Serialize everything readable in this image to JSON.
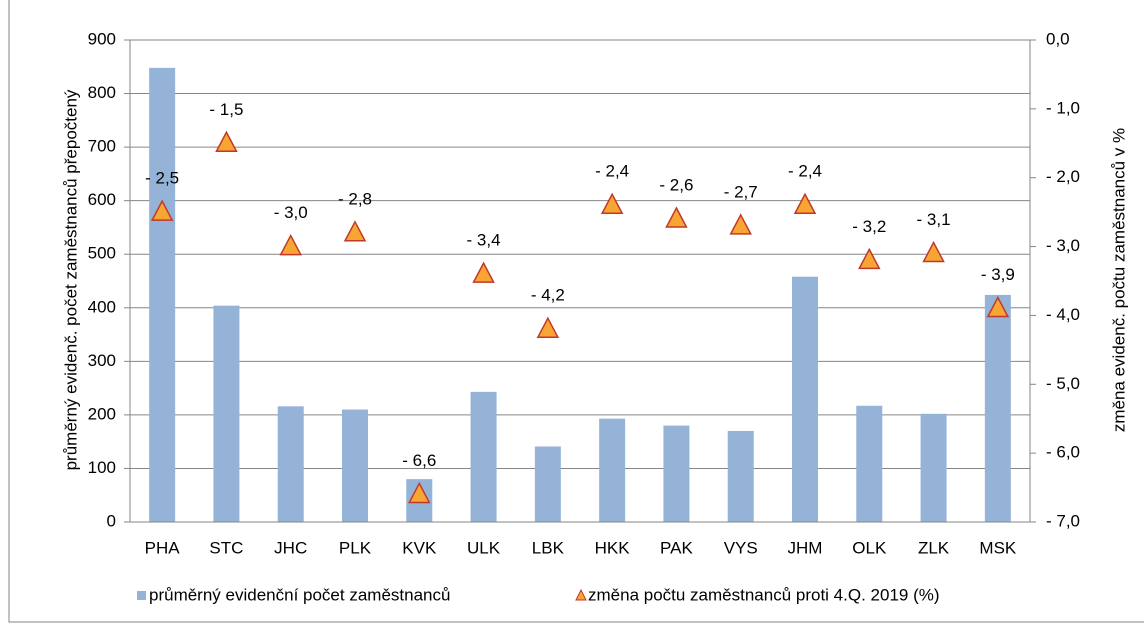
{
  "chart_data": {
    "type": "bar",
    "categories": [
      "PHA",
      "STC",
      "JHC",
      "PLK",
      "KVK",
      "ULK",
      "LBK",
      "HKK",
      "PAK",
      "VYS",
      "JHM",
      "OLK",
      "ZLK",
      "MSK"
    ],
    "series": [
      {
        "name": "průměrný evidenční počet zaměstnanců",
        "type": "bar",
        "color": "#95b3d7",
        "values": [
          848,
          404,
          216,
          210,
          80,
          243,
          141,
          193,
          180,
          170,
          458,
          217,
          202,
          424
        ]
      },
      {
        "name": "změna počtu zaměstnanců proti 4.Q. 2019 (%)",
        "type": "marker",
        "axis": "y2",
        "color": "#f9a533",
        "edge_color": "#c0392b",
        "values": [
          -2.5,
          -1.5,
          -3.0,
          -2.8,
          -6.6,
          -3.4,
          -4.2,
          -2.4,
          -2.6,
          -2.7,
          -2.4,
          -3.2,
          -3.1,
          -3.9
        ],
        "value_labels": [
          "- 2,5",
          "- 1,5",
          "- 3,0",
          "- 2,8",
          "- 6,6",
          "- 3,4",
          "- 4,2",
          "- 2,4",
          "- 2,6",
          "- 2,7",
          "- 2,4",
          "- 3,2",
          "- 3,1",
          "- 3,9"
        ]
      }
    ],
    "y_label": "průměrný evidenč. počet zaměstnanců přepočtený",
    "y2_label": "změna  evidenč. počtu zaměstnanců v %",
    "ylim": [
      0,
      900
    ],
    "yticks": [
      0,
      100,
      200,
      300,
      400,
      500,
      600,
      700,
      800,
      900
    ],
    "y2lim": [
      -7,
      0
    ],
    "y2ticks": [
      {
        "value": 0,
        "label": "0,0"
      },
      {
        "value": -1,
        "label": "- 1,0"
      },
      {
        "value": -2,
        "label": "- 2,0"
      },
      {
        "value": -3,
        "label": "- 3,0"
      },
      {
        "value": -4,
        "label": "- 4,0"
      },
      {
        "value": -5,
        "label": "- 5,0"
      },
      {
        "value": -6,
        "label": "- 6,0"
      },
      {
        "value": -7,
        "label": "- 7,0"
      }
    ],
    "grid": true,
    "legend": "bottom"
  }
}
